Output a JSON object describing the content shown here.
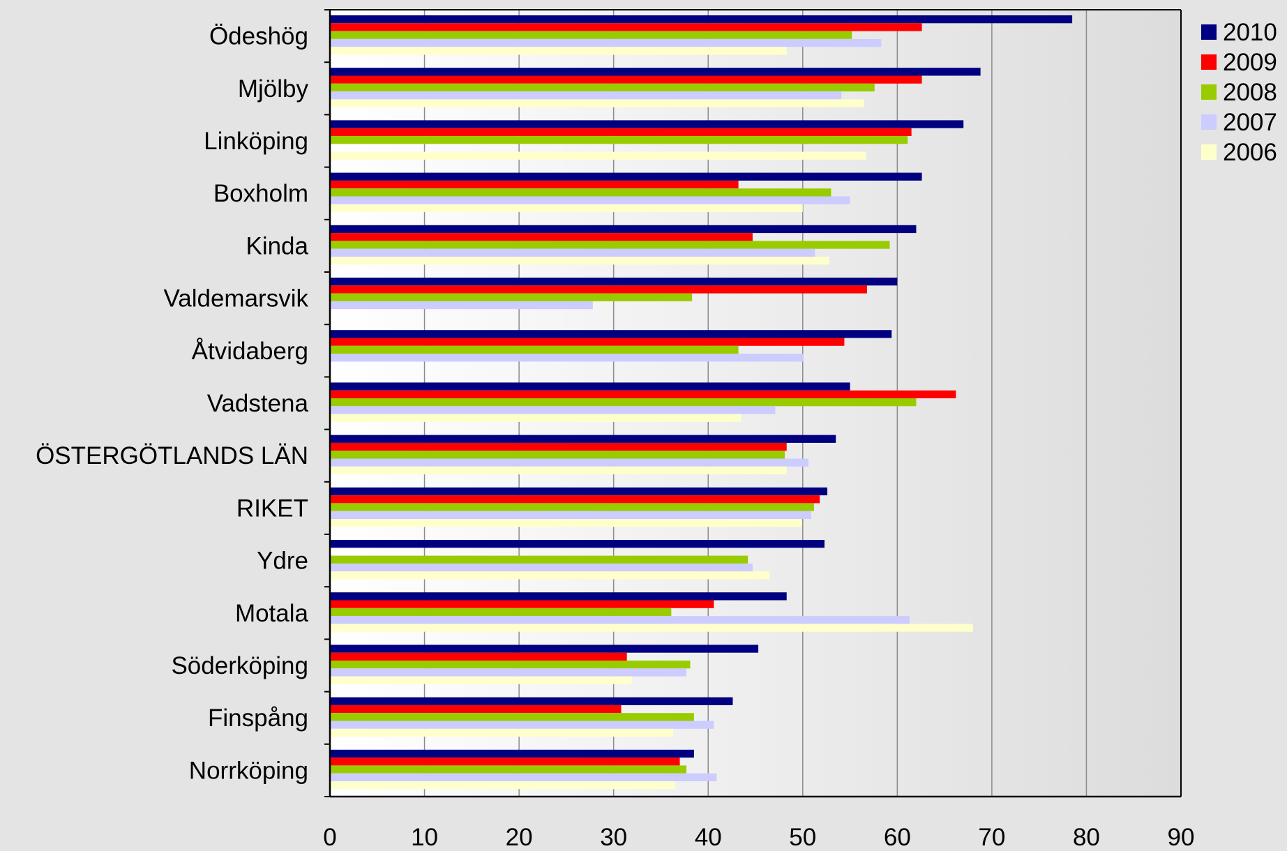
{
  "chart_data": {
    "type": "bar",
    "orientation": "horizontal",
    "title": "",
    "xlabel": "",
    "ylabel": "",
    "xlim": [
      0,
      90
    ],
    "x_ticks": [
      0,
      10,
      20,
      30,
      40,
      50,
      60,
      70,
      80,
      90
    ],
    "grid": "vertical",
    "legend_position": "top-right",
    "categories": [
      "Ödeshög",
      "Mjölby",
      "Linköping",
      "Boxholm",
      "Kinda",
      "Valdemarsvik",
      "Åtvidaberg",
      "Vadstena",
      "ÖSTERGÖTLANDS LÄN",
      "RIKET",
      "Ydre",
      "Motala",
      "Söderköping",
      "Finspång",
      "Norrköping"
    ],
    "series": [
      {
        "name": "2010",
        "color": "#000080",
        "values": [
          78.5,
          68.8,
          67.0,
          62.6,
          62.0,
          60.0,
          59.4,
          55.0,
          53.5,
          52.6,
          52.3,
          48.3,
          45.3,
          42.6,
          38.5
        ]
      },
      {
        "name": "2009",
        "color": "#ff0000",
        "values": [
          62.6,
          62.6,
          61.5,
          43.2,
          44.7,
          56.8,
          54.4,
          66.2,
          48.3,
          51.8,
          null,
          40.6,
          31.4,
          30.8,
          37.0
        ]
      },
      {
        "name": "2008",
        "color": "#99cc00",
        "values": [
          55.2,
          57.6,
          61.1,
          53.0,
          59.2,
          38.3,
          43.2,
          62.0,
          48.1,
          51.2,
          44.2,
          36.1,
          38.1,
          38.5,
          37.7
        ]
      },
      {
        "name": "2007",
        "color": "#ccccff",
        "values": [
          58.3,
          54.1,
          null,
          55.0,
          51.3,
          27.8,
          50.1,
          47.1,
          50.6,
          50.9,
          44.7,
          61.3,
          37.7,
          40.6,
          40.9
        ]
      },
      {
        "name": "2006",
        "color": "#ffffcc",
        "values": [
          48.3,
          56.5,
          56.7,
          50.0,
          52.8,
          null,
          null,
          43.5,
          48.3,
          49.9,
          46.5,
          68.0,
          31.9,
          36.3,
          36.5
        ]
      }
    ]
  }
}
